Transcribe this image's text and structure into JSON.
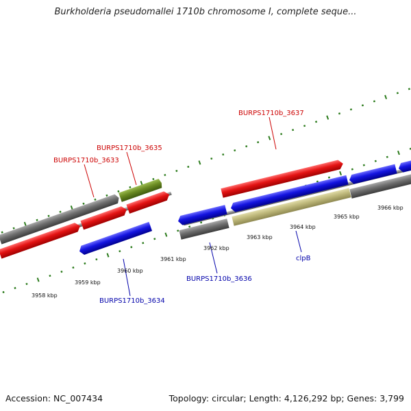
{
  "title": "Burkholderia pseudomallei 1710b chromosome I, complete seque...",
  "accession": "Accession: NC_007434",
  "summary": "Topology: circular; Length: 4,126,292 bp; Genes: 3,799",
  "colors": {
    "forward_gene": "#e31313",
    "reverse_gene": "#1010d8",
    "pseudo_gene": "#6e6e6e",
    "rna_gene": "#6a8a22",
    "misc_feature": "#bdb77a",
    "backbone": "#8a8a8a",
    "ticks": "#2a7a1a",
    "label_forward": "#cc0000",
    "label_reverse": "#0000aa"
  },
  "scale_labels": [
    "3958 kbp",
    "3959 kbp",
    "3960 kbp",
    "3961 kbp",
    "3962 kbp",
    "3963 kbp",
    "3964 kbp",
    "3965 kbp",
    "3966 kbp"
  ],
  "gene_labels": [
    {
      "text": "BURPS1710b_3637",
      "strand": "forward"
    },
    {
      "text": "BURPS1710b_3635",
      "strand": "forward"
    },
    {
      "text": "BURPS1710b_3633",
      "strand": "forward"
    },
    {
      "text": "BURPS1710b_3636",
      "strand": "reverse"
    },
    {
      "text": "clpB",
      "strand": "reverse"
    },
    {
      "text": "BURPS1710b_3634",
      "strand": "reverse"
    }
  ]
}
